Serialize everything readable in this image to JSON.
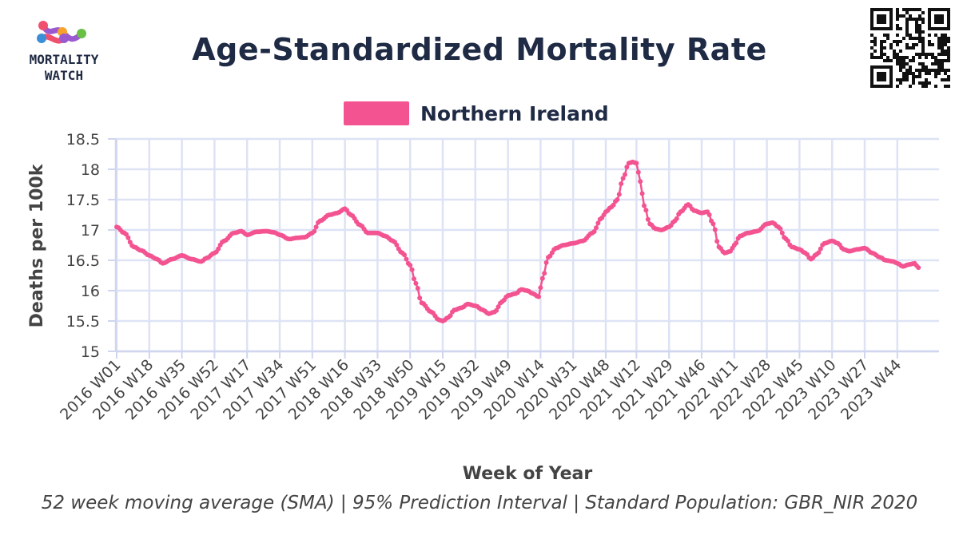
{
  "brand": {
    "logo_line1": "MORTALITY",
    "logo_line2": "WATCH",
    "logo_colors": [
      "#f0506e",
      "#f7a22b",
      "#6abf45",
      "#3a8fd8",
      "#9b59d0"
    ]
  },
  "qr_icon": "qr-code-icon",
  "chart_data": {
    "type": "line",
    "title": "Age-Standardized Mortality Rate",
    "xlabel": "Week of Year",
    "ylabel": "Deaths per 100k",
    "ylim": [
      15,
      18.5
    ],
    "yticks": [
      "15",
      "15.5",
      "16",
      "16.5",
      "17",
      "17.5",
      "18",
      "18.5"
    ],
    "xticks": [
      "2016 W01",
      "2016 W18",
      "2016 W35",
      "2016 W52",
      "2017 W17",
      "2017 W34",
      "2017 W51",
      "2018 W16",
      "2018 W33",
      "2018 W50",
      "2019 W15",
      "2019 W32",
      "2019 W49",
      "2020 W14",
      "2020 W31",
      "2020 W48",
      "2021 W12",
      "2021 W29",
      "2021 W46",
      "2022 W11",
      "2022 W28",
      "2022 W45",
      "2023 W10",
      "2023 W27",
      "2023 W44"
    ],
    "grid": true,
    "legend_position": "top-center",
    "series": [
      {
        "name": "Northern Ireland",
        "color": "#f35491",
        "keyframes": [
          [
            "2016 W01",
            17.05
          ],
          [
            "2016 W05",
            16.95
          ],
          [
            "2016 W10",
            16.72
          ],
          [
            "2016 W14",
            16.66
          ],
          [
            "2016 W18",
            16.58
          ],
          [
            "2016 W22",
            16.52
          ],
          [
            "2016 W25",
            16.45
          ],
          [
            "2016 W30",
            16.52
          ],
          [
            "2016 W35",
            16.58
          ],
          [
            "2016 W40",
            16.52
          ],
          [
            "2016 W45",
            16.48
          ],
          [
            "2016 W48",
            16.54
          ],
          [
            "2016 W52",
            16.62
          ],
          [
            "2017 W05",
            16.82
          ],
          [
            "2017 W10",
            16.95
          ],
          [
            "2017 W14",
            16.98
          ],
          [
            "2017 W17",
            16.92
          ],
          [
            "2017 W22",
            16.97
          ],
          [
            "2017 W27",
            16.98
          ],
          [
            "2017 W31",
            16.96
          ],
          [
            "2017 W34",
            16.92
          ],
          [
            "2017 W39",
            16.85
          ],
          [
            "2017 W43",
            16.87
          ],
          [
            "2017 W47",
            16.88
          ],
          [
            "2017 W51",
            16.95
          ],
          [
            "2018 W03",
            17.15
          ],
          [
            "2018 W08",
            17.25
          ],
          [
            "2018 W12",
            17.28
          ],
          [
            "2018 W16",
            17.35
          ],
          [
            "2018 W19",
            17.25
          ],
          [
            "2018 W24",
            17.08
          ],
          [
            "2018 W28",
            16.95
          ],
          [
            "2018 W33",
            16.95
          ],
          [
            "2018 W37",
            16.9
          ],
          [
            "2018 W41",
            16.82
          ],
          [
            "2018 W46",
            16.62
          ],
          [
            "2018 W50",
            16.42
          ],
          [
            "2019 W01",
            16.12
          ],
          [
            "2019 W04",
            15.8
          ],
          [
            "2019 W09",
            15.65
          ],
          [
            "2019 W13",
            15.52
          ],
          [
            "2019 W15",
            15.5
          ],
          [
            "2019 W18",
            15.56
          ],
          [
            "2019 W21",
            15.68
          ],
          [
            "2019 W25",
            15.72
          ],
          [
            "2019 W28",
            15.78
          ],
          [
            "2019 W32",
            15.75
          ],
          [
            "2019 W36",
            15.68
          ],
          [
            "2019 W39",
            15.62
          ],
          [
            "2019 W42",
            15.65
          ],
          [
            "2019 W46",
            15.82
          ],
          [
            "2019 W49",
            15.92
          ],
          [
            "2020 W01",
            15.95
          ],
          [
            "2020 W04",
            16.02
          ],
          [
            "2020 W07",
            16.0
          ],
          [
            "2020 W10",
            15.95
          ],
          [
            "2020 W13",
            15.9
          ],
          [
            "2020 W15",
            16.2
          ],
          [
            "2020 W18",
            16.55
          ],
          [
            "2020 W22",
            16.7
          ],
          [
            "2020 W26",
            16.75
          ],
          [
            "2020 W31",
            16.78
          ],
          [
            "2020 W36",
            16.82
          ],
          [
            "2020 W41",
            16.95
          ],
          [
            "2020 W46",
            17.2
          ],
          [
            "2020 W48",
            17.3
          ],
          [
            "2020 W51",
            17.38
          ],
          [
            "2021 W02",
            17.5
          ],
          [
            "2021 W05",
            17.85
          ],
          [
            "2021 W08",
            18.1
          ],
          [
            "2021 W10",
            18.12
          ],
          [
            "2021 W12",
            18.1
          ],
          [
            "2021 W14",
            17.8
          ],
          [
            "2021 W16",
            17.4
          ],
          [
            "2021 W19",
            17.1
          ],
          [
            "2021 W22",
            17.02
          ],
          [
            "2021 W25",
            17.0
          ],
          [
            "2021 W29",
            17.05
          ],
          [
            "2021 W32",
            17.15
          ],
          [
            "2021 W35",
            17.3
          ],
          [
            "2021 W39",
            17.42
          ],
          [
            "2021 W42",
            17.32
          ],
          [
            "2021 W46",
            17.28
          ],
          [
            "2021 W49",
            17.3
          ],
          [
            "2021 W52",
            17.1
          ],
          [
            "2022 W03",
            16.72
          ],
          [
            "2022 W06",
            16.62
          ],
          [
            "2022 W09",
            16.65
          ],
          [
            "2022 W11",
            16.75
          ],
          [
            "2022 W14",
            16.9
          ],
          [
            "2022 W18",
            16.95
          ],
          [
            "2022 W23",
            16.98
          ],
          [
            "2022 W28",
            17.1
          ],
          [
            "2022 W31",
            17.12
          ],
          [
            "2022 W34",
            17.05
          ],
          [
            "2022 W38",
            16.85
          ],
          [
            "2022 W41",
            16.72
          ],
          [
            "2022 W45",
            16.68
          ],
          [
            "2022 W48",
            16.62
          ],
          [
            "2022 W51",
            16.52
          ],
          [
            "2023 W02",
            16.6
          ],
          [
            "2023 W06",
            16.78
          ],
          [
            "2023 W10",
            16.82
          ],
          [
            "2023 W13",
            16.78
          ],
          [
            "2023 W16",
            16.68
          ],
          [
            "2023 W19",
            16.65
          ],
          [
            "2023 W23",
            16.68
          ],
          [
            "2023 W27",
            16.7
          ],
          [
            "2023 W31",
            16.62
          ],
          [
            "2023 W35",
            16.55
          ],
          [
            "2023 W38",
            16.5
          ],
          [
            "2023 W42",
            16.48
          ],
          [
            "2023 W44",
            16.45
          ],
          [
            "2023 W47",
            16.4
          ],
          [
            "2023 W50",
            16.43
          ],
          [
            "2024 W01",
            16.45
          ],
          [
            "2024 W03",
            16.38
          ]
        ]
      }
    ],
    "footnote": "52 week moving average (SMA) | 95% Prediction Interval | Standard Population: GBR_NIR 2020"
  }
}
